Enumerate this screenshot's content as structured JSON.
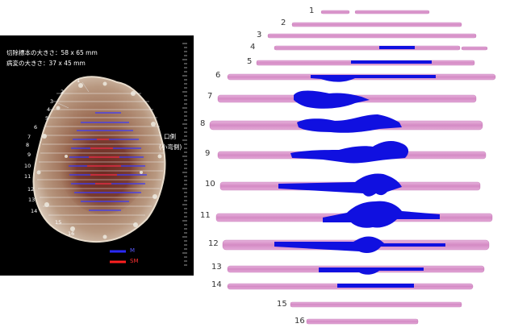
{
  "specimen": {
    "resection_size": "切除標本の大きさ：58 x 65 mm",
    "lesion_size": "病変の大きさ：37 x 45 mm",
    "oral_side": "口側",
    "lesser_curvature": "(小弯側)"
  },
  "legend": {
    "m_label": "M",
    "sm_label": "SM",
    "m_color": "#1a1aff",
    "sm_color": "#ff2020"
  },
  "left_slice_labels": [
    "1",
    "2",
    "3",
    "4",
    "5",
    "6",
    "7",
    "8",
    "9",
    "10",
    "11",
    "12",
    "13",
    "14",
    "15",
    "16"
  ],
  "right_slice_labels": [
    "1",
    "2",
    "3",
    "4",
    "5",
    "6",
    "7",
    "8",
    "9",
    "10",
    "11",
    "12",
    "13",
    "14",
    "15",
    "16"
  ],
  "colors": {
    "tissue_pink": "#d98fc8",
    "tissue_light": "#e9b8de",
    "tumor_blue": "#1010e0"
  }
}
